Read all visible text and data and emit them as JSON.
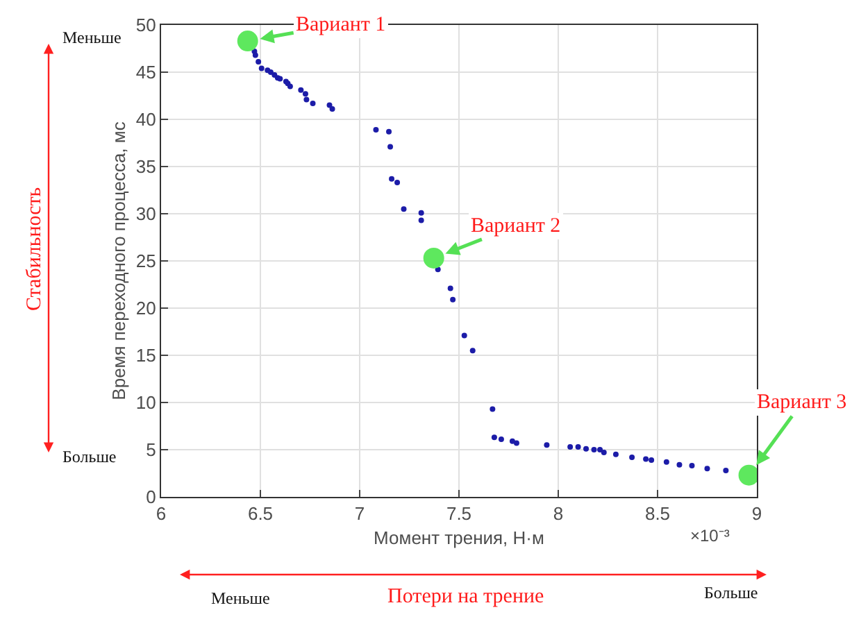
{
  "chart_data": {
    "type": "scatter",
    "xlabel": "Момент трения, Н·м",
    "ylabel": "Время переходного процесса, мс",
    "xlim": [
      6,
      9
    ],
    "xticks": [
      6,
      6.5,
      7,
      7.5,
      8,
      8.5,
      9
    ],
    "ylim": [
      0,
      50
    ],
    "yticks": [
      0,
      5,
      10,
      15,
      20,
      25,
      30,
      35,
      40,
      45,
      50
    ],
    "grid": true,
    "marker": "circle",
    "series": [
      {
        "color": "#1c1ca8",
        "x": [
          6.47,
          6.475,
          6.49,
          6.506,
          6.536,
          6.552,
          6.571,
          6.587,
          6.599,
          6.629,
          6.638,
          6.65,
          6.704,
          6.727,
          6.732,
          6.764,
          6.848,
          6.862,
          7.082,
          7.147,
          7.154,
          7.161,
          7.189,
          7.222,
          7.31,
          7.31,
          7.394,
          7.457,
          7.469,
          7.527,
          7.569,
          7.669,
          7.678,
          7.713,
          7.769,
          7.79,
          7.942,
          8.06,
          8.1,
          8.14,
          8.18,
          8.21,
          8.23,
          8.29,
          8.371,
          8.441,
          8.469,
          8.545,
          8.61,
          8.673,
          8.75,
          8.844
        ],
        "values": [
          47.2,
          46.8,
          46.1,
          45.4,
          45.2,
          45.0,
          44.7,
          44.4,
          44.3,
          44.0,
          43.8,
          43.5,
          43.1,
          42.7,
          42.1,
          41.7,
          41.5,
          41.1,
          38.9,
          38.7,
          37.1,
          33.7,
          33.3,
          30.5,
          30.1,
          29.3,
          24.1,
          22.1,
          20.9,
          17.1,
          15.5,
          9.3,
          6.3,
          6.1,
          5.9,
          5.7,
          5.5,
          5.3,
          5.3,
          5.1,
          5.0,
          5.0,
          4.7,
          4.5,
          4.2,
          4.0,
          3.9,
          3.7,
          3.4,
          3.3,
          3.0,
          2.8
        ]
      },
      {
        "color": "#5ee85e",
        "x": [
          6.436,
          7.373,
          8.96
        ],
        "values": [
          48.3,
          25.3,
          2.3
        ]
      }
    ],
    "annotations": [
      {
        "text": "Вариант 1",
        "x": 6.436,
        "y": 48.3
      },
      {
        "text": "Вариант 2",
        "x": 7.373,
        "y": 25.3
      },
      {
        "text": "Вариант 3",
        "x": 8.96,
        "y": 2.3
      },
      "×10⁻³",
      "Меньше",
      "Больше",
      "Стабильность",
      "Меньше",
      "Потери на трение",
      "Больше"
    ]
  }
}
